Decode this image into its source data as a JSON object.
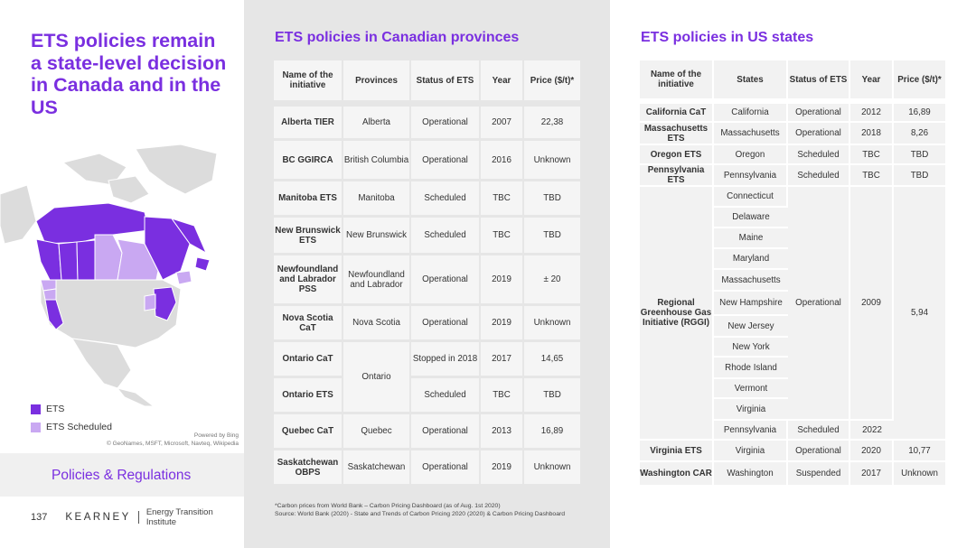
{
  "left": {
    "title": "ETS policies remain a state-level decision in Canada and in the US",
    "legend": [
      {
        "label": "ETS",
        "color": "#7a2fe0"
      },
      {
        "label": "ETS Scheduled",
        "color": "#c9a8f2"
      }
    ],
    "powered_by": "Powered by Bing",
    "copyright": "© GeoNames, MSFT, Microsoft, Navteq, Wikipedia",
    "section": "Policies & Regulations",
    "page_number": "137",
    "brand": "KEARNEY",
    "institute": "Energy Transition Institute"
  },
  "canada": {
    "title": "ETS policies in Canadian provinces",
    "headers": [
      "Name of the initiative",
      "Provinces",
      "Status of ETS",
      "Year",
      "Price ($/t)*"
    ],
    "rows": [
      [
        "Alberta TIER",
        "Alberta",
        "Operational",
        "2007",
        "22,38"
      ],
      [
        "BC GGIRCA",
        "British Columbia",
        "Operational",
        "2016",
        "Unknown"
      ],
      [
        "Manitoba ETS",
        "Manitoba",
        "Scheduled",
        "TBC",
        "TBD"
      ],
      [
        "New Brunswick ETS",
        "New Brunswick",
        "Scheduled",
        "TBC",
        "TBD"
      ],
      [
        "Newfoundland and Labrador PSS",
        "Newfoundland and Labrador",
        "Operational",
        "2019",
        "± 20"
      ],
      [
        "Nova Scotia CaT",
        "Nova Scotia",
        "Operational",
        "2019",
        "Unknown"
      ],
      [
        "Ontario CaT",
        "Ontario",
        "Stopped in 2018",
        "2017",
        "14,65"
      ],
      [
        "Ontario ETS",
        "",
        "Scheduled",
        "TBC",
        "TBD"
      ],
      [
        "Quebec CaT",
        "Quebec",
        "Operational",
        "2013",
        "16,89"
      ],
      [
        "Saskatchewan OBPS",
        "Saskatchewan",
        "Operational",
        "2019",
        "Unknown"
      ]
    ]
  },
  "us": {
    "title": "ETS policies in US states",
    "headers": [
      "Name of the initiative",
      "States",
      "Status of ETS",
      "Year",
      "Price ($/t)*"
    ],
    "rows_top": [
      [
        "California CaT",
        "California",
        "Operational",
        "2012",
        "16,89"
      ],
      [
        "Massachusetts ETS",
        "Massachusetts",
        "Operational",
        "2018",
        "8,26"
      ],
      [
        "Oregon ETS",
        "Oregon",
        "Scheduled",
        "TBC",
        "TBD"
      ],
      [
        "Pennsylvania ETS",
        "Pennsylvania",
        "Scheduled",
        "TBC",
        "TBD"
      ]
    ],
    "rggi": {
      "name": "Regional Greenhouse Gas Initiative (RGGI)",
      "states": [
        "Connecticut",
        "Delaware",
        "Maine",
        "Maryland",
        "Massachusetts",
        "New Hampshire",
        "New Jersey",
        "New York",
        "Rhode Island",
        "Vermont",
        "Virginia",
        "Pennsylvania"
      ],
      "status": "Operational",
      "year": "2009",
      "status_last": "Scheduled",
      "year_last": "2022",
      "price": "5,94"
    },
    "rows_bottom": [
      [
        "Virginia ETS",
        "Virginia",
        "Operational",
        "2020",
        "10,77"
      ],
      [
        "Washington CAR",
        "Washington",
        "Suspended",
        "2017",
        "Unknown"
      ]
    ]
  },
  "notes": {
    "line1": "*Carbon prices from World Bank – Carbon Pricing Dashboard (as of Aug. 1st 2020)",
    "line2": "Source: World Bank (2020) - State and Trends of Carbon Pricing 2020 (2020) & Carbon Pricing Dashboard"
  }
}
